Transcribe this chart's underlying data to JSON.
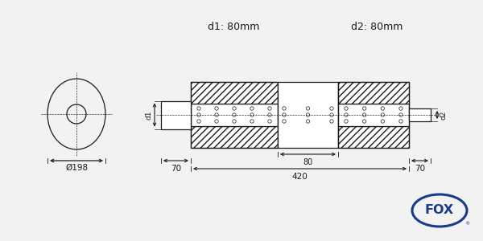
{
  "bg_color": "#f2f2f2",
  "line_color": "#1a1a1a",
  "d1_label": "d1: 80mm",
  "d2_label": "d2: 80mm",
  "dim_198": "Ø198",
  "dim_80": "80",
  "dim_420": "420",
  "dim_70_left": "70",
  "dim_70_right": "70",
  "fox_color": "#1a3a8a"
}
